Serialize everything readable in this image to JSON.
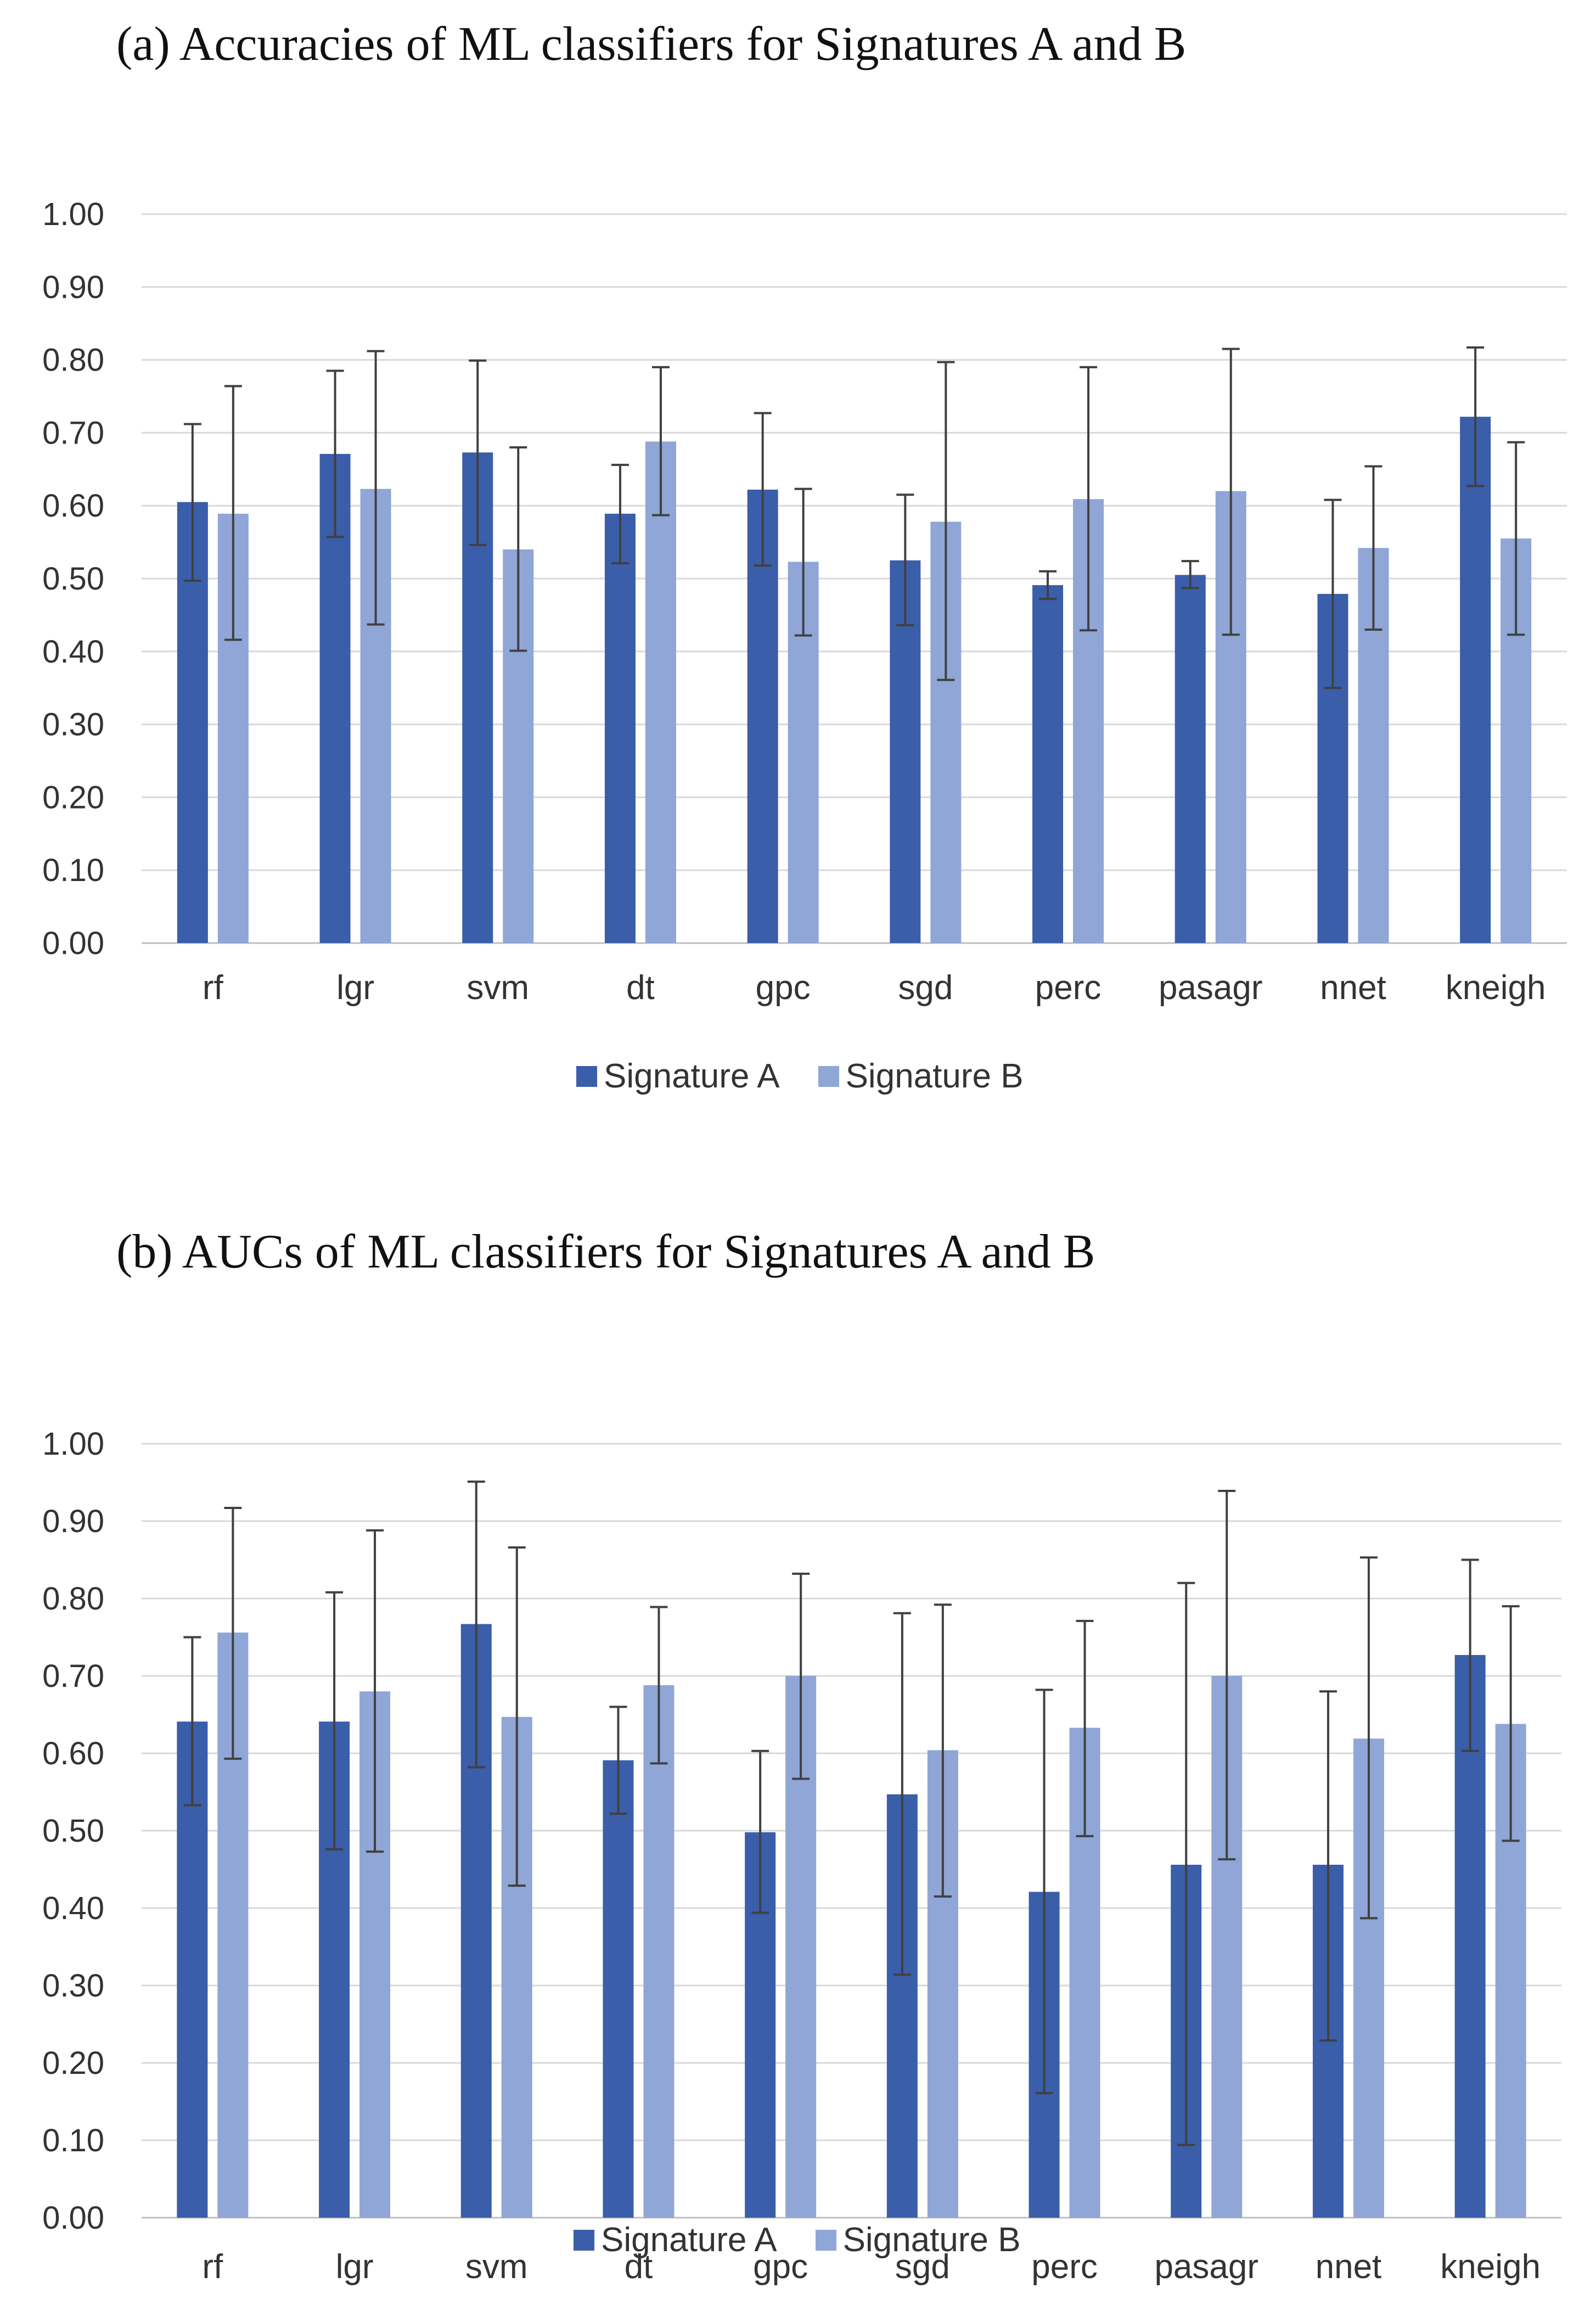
{
  "colors": {
    "series_a": "#3a5ea9",
    "series_b": "#8fa6d6",
    "grid": "#d9d9d9",
    "axis": "#bfbfbf",
    "error_bar": "#404040"
  },
  "chart_data": [
    {
      "type": "bar",
      "title": "(a)  Accuracies of ML classifiers for Signatures A and B",
      "categories": [
        "rf",
        "lgr",
        "svm",
        "dt",
        "gpc",
        "sgd",
        "perc",
        "pasagr",
        "nnet",
        "kneigh"
      ],
      "ylim": [
        0,
        1
      ],
      "yticks": [
        "0.00",
        "0.10",
        "0.20",
        "0.30",
        "0.40",
        "0.50",
        "0.60",
        "0.70",
        "0.80",
        "0.90",
        "1.00"
      ],
      "xlabel": "",
      "ylabel": "",
      "legend_position": "bottom-center",
      "grid": true,
      "series": [
        {
          "name": "Signature A",
          "values": [
            0.605,
            0.671,
            0.673,
            0.589,
            0.622,
            0.525,
            0.491,
            0.505,
            0.479,
            0.722
          ],
          "err_low": [
            0.497,
            0.557,
            0.546,
            0.521,
            0.518,
            0.436,
            0.472,
            0.487,
            0.35,
            0.627
          ],
          "err_high": [
            0.712,
            0.785,
            0.799,
            0.656,
            0.727,
            0.615,
            0.51,
            0.524,
            0.608,
            0.817
          ]
        },
        {
          "name": "Signature B",
          "values": [
            0.589,
            0.623,
            0.54,
            0.688,
            0.523,
            0.578,
            0.609,
            0.62,
            0.542,
            0.555
          ],
          "err_low": [
            0.416,
            0.437,
            0.401,
            0.587,
            0.422,
            0.361,
            0.429,
            0.423,
            0.43,
            0.423
          ],
          "err_high": [
            0.764,
            0.812,
            0.68,
            0.79,
            0.623,
            0.797,
            0.79,
            0.815,
            0.654,
            0.687
          ]
        }
      ]
    },
    {
      "type": "bar",
      "title": "(b)  AUCs of ML classifiers for Signatures A and B",
      "categories": [
        "rf",
        "lgr",
        "svm",
        "dt",
        "gpc",
        "sgd",
        "perc",
        "pasagr",
        "nnet",
        "kneigh"
      ],
      "ylim": [
        0,
        1
      ],
      "yticks": [
        "0.00",
        "0.10",
        "0.20",
        "0.30",
        "0.40",
        "0.50",
        "0.60",
        "0.70",
        "0.80",
        "0.90",
        "1.00"
      ],
      "xlabel": "",
      "ylabel": "",
      "legend_position": "bottom-center",
      "grid": true,
      "series": [
        {
          "name": "Signature A",
          "values": [
            0.641,
            0.641,
            0.767,
            0.591,
            0.498,
            0.547,
            0.421,
            0.456,
            0.456,
            0.727
          ],
          "err_low": [
            0.533,
            0.476,
            0.582,
            0.522,
            0.394,
            0.314,
            0.161,
            0.094,
            0.229,
            0.603
          ],
          "err_high": [
            0.75,
            0.808,
            0.951,
            0.66,
            0.603,
            0.781,
            0.682,
            0.82,
            0.68,
            0.85
          ]
        },
        {
          "name": "Signature B",
          "values": [
            0.756,
            0.68,
            0.647,
            0.688,
            0.7,
            0.604,
            0.633,
            0.7,
            0.619,
            0.638
          ],
          "err_low": [
            0.593,
            0.473,
            0.429,
            0.587,
            0.567,
            0.415,
            0.493,
            0.463,
            0.387,
            0.487
          ],
          "err_high": [
            0.917,
            0.888,
            0.866,
            0.789,
            0.832,
            0.792,
            0.771,
            0.939,
            0.853,
            0.79
          ]
        }
      ]
    }
  ]
}
